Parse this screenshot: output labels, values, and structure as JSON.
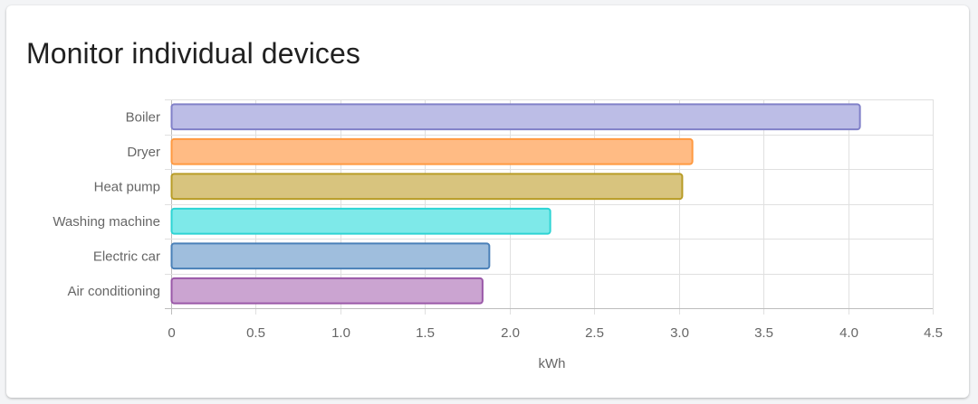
{
  "card": {
    "title": "Monitor individual devices"
  },
  "chart_data": {
    "type": "bar",
    "orientation": "horizontal",
    "categories": [
      "Boiler",
      "Dryer",
      "Heat pump",
      "Washing machine",
      "Electric car",
      "Air conditioning"
    ],
    "values": [
      4.07,
      3.08,
      3.02,
      2.24,
      1.88,
      1.84
    ],
    "colors": {
      "fill": [
        "#bcbde6",
        "#ffbb84",
        "#d8c47e",
        "#7ee9e9",
        "#9fbedd",
        "#cba4d1"
      ],
      "stroke": [
        "#8080c8",
        "#ff9940",
        "#b89c26",
        "#2dd4d4",
        "#4a80b8",
        "#9a58a8"
      ]
    },
    "xlabel": "kWh",
    "ylabel": "",
    "xlim": [
      0,
      4.5
    ],
    "x_ticks": [
      "0",
      "0.5",
      "1.0",
      "1.5",
      "2.0",
      "2.5",
      "3.0",
      "3.5",
      "4.0",
      "4.5"
    ],
    "grid": true,
    "legend": "none"
  }
}
